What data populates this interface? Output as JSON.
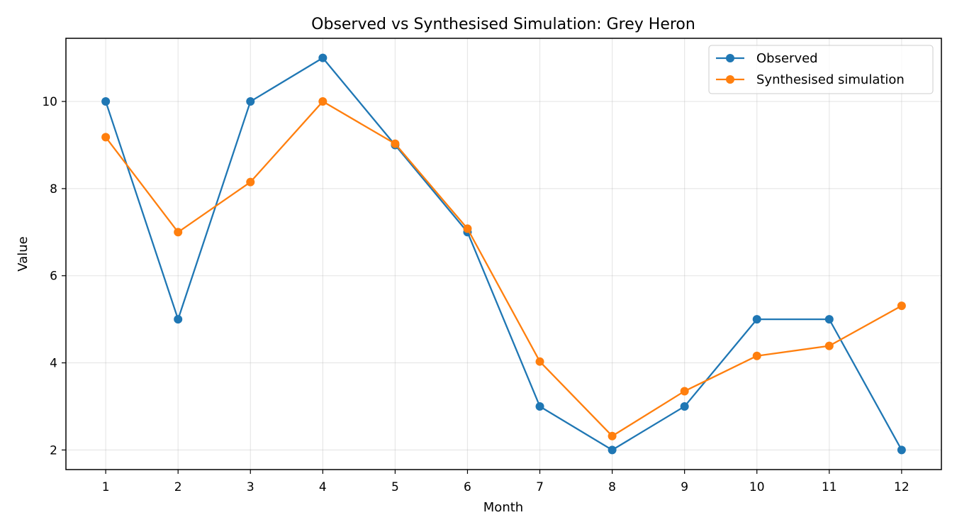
{
  "chart_data": {
    "type": "line",
    "title": "Observed vs Synthesised Simulation: Grey Heron",
    "xlabel": "Month",
    "ylabel": "Value",
    "x": [
      1,
      2,
      3,
      4,
      5,
      6,
      7,
      8,
      9,
      10,
      11,
      12
    ],
    "xlim": [
      0.45,
      12.55
    ],
    "ylim": [
      1.55,
      11.45
    ],
    "yticks": [
      2,
      4,
      6,
      8,
      10
    ],
    "grid": true,
    "legend_position": "top-right",
    "series": [
      {
        "name": "Observed",
        "color": "#1f77b4",
        "marker": "circle",
        "values": [
          10,
          5,
          10,
          11,
          9,
          7,
          3,
          2,
          3,
          5,
          5,
          2
        ]
      },
      {
        "name": "Synthesised simulation",
        "color": "#ff7f0e",
        "marker": "circle",
        "values": [
          9.18,
          7.0,
          8.15,
          10.0,
          9.03,
          7.08,
          4.03,
          2.32,
          3.35,
          4.16,
          4.39,
          5.31
        ]
      }
    ]
  }
}
